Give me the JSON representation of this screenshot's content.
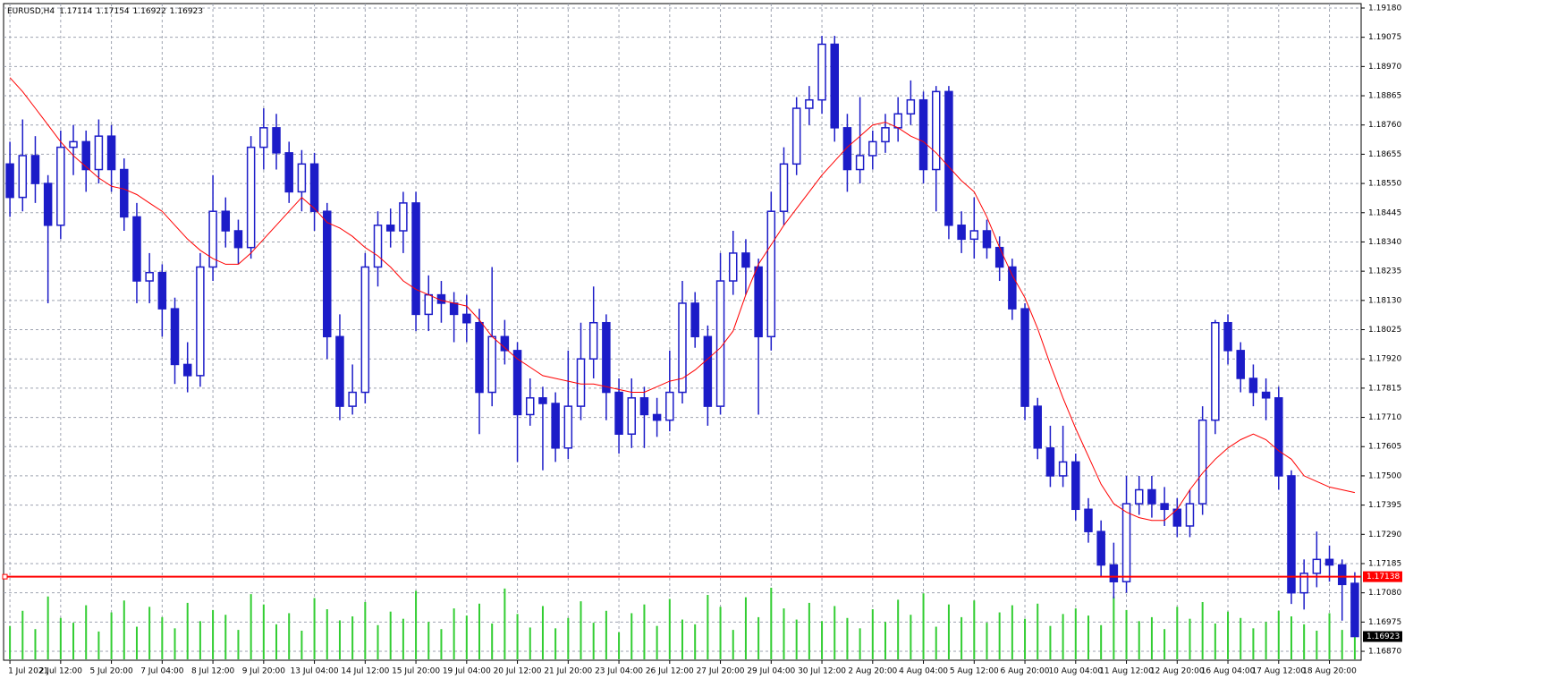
{
  "chart_data": {
    "type": "candlestick",
    "symbol": "EURUSD,H4",
    "header_values": [
      1.17114,
      1.17154,
      1.16922,
      1.16923
    ],
    "categories": [
      "1 Jul 2021",
      null,
      null,
      null,
      "2 Jul 12:00",
      null,
      null,
      null,
      "5 Jul 20:00",
      null,
      null,
      null,
      "7 Jul 04:00",
      null,
      null,
      null,
      "8 Jul 12:00",
      null,
      null,
      null,
      "9 Jul 20:00",
      null,
      null,
      null,
      "13 Jul 04:00",
      null,
      null,
      null,
      "14 Jul 12:00",
      null,
      null,
      null,
      "15 Jul 20:00",
      null,
      null,
      null,
      "19 Jul 04:00",
      null,
      null,
      null,
      "20 Jul 12:00",
      null,
      null,
      null,
      "21 Jul 20:00",
      null,
      null,
      null,
      "23 Jul 04:00",
      null,
      null,
      null,
      "26 Jul 12:00",
      null,
      null,
      null,
      "27 Jul 20:00",
      null,
      null,
      null,
      "29 Jul 04:00",
      null,
      null,
      null,
      "30 Jul 12:00",
      null,
      null,
      null,
      "2 Aug 20:00",
      null,
      null,
      null,
      "4 Aug 04:00",
      null,
      null,
      null,
      "5 Aug 12:00",
      null,
      null,
      null,
      "6 Aug 20:00",
      null,
      null,
      null,
      "10 Aug 04:00",
      null,
      null,
      null,
      "11 Aug 12:00",
      null,
      null,
      null,
      "12 Aug 20:00",
      null,
      null,
      null,
      "16 Aug 04:00",
      null,
      null,
      null,
      "17 Aug 12:00",
      null,
      null,
      null,
      "18 Aug 20:00",
      null,
      null
    ],
    "ohlc": [
      [
        1.1862,
        1.187,
        1.1843,
        1.185
      ],
      [
        1.185,
        1.1878,
        1.1845,
        1.1865
      ],
      [
        1.1865,
        1.1872,
        1.1848,
        1.1855
      ],
      [
        1.1855,
        1.1858,
        1.1812,
        1.184
      ],
      [
        1.184,
        1.1874,
        1.1835,
        1.1868
      ],
      [
        1.1868,
        1.1876,
        1.1858,
        1.187
      ],
      [
        1.187,
        1.1874,
        1.1852,
        1.186
      ],
      [
        1.186,
        1.1878,
        1.1855,
        1.1872
      ],
      [
        1.1872,
        1.1876,
        1.1852,
        1.186
      ],
      [
        1.186,
        1.1864,
        1.1838,
        1.1843
      ],
      [
        1.1843,
        1.1848,
        1.1812,
        1.182
      ],
      [
        1.182,
        1.183,
        1.1812,
        1.1823
      ],
      [
        1.1823,
        1.1826,
        1.18,
        1.181
      ],
      [
        1.181,
        1.1814,
        1.1783,
        1.179
      ],
      [
        1.179,
        1.1798,
        1.178,
        1.1786
      ],
      [
        1.1786,
        1.183,
        1.1782,
        1.1825
      ],
      [
        1.1825,
        1.1858,
        1.182,
        1.1845
      ],
      [
        1.1845,
        1.185,
        1.1832,
        1.1838
      ],
      [
        1.1838,
        1.1842,
        1.1826,
        1.1832
      ],
      [
        1.1832,
        1.1872,
        1.1828,
        1.1868
      ],
      [
        1.1868,
        1.1882,
        1.186,
        1.1875
      ],
      [
        1.1875,
        1.188,
        1.186,
        1.1866
      ],
      [
        1.1866,
        1.187,
        1.1848,
        1.1852
      ],
      [
        1.1852,
        1.1867,
        1.1845,
        1.1862
      ],
      [
        1.1862,
        1.1866,
        1.1838,
        1.1845
      ],
      [
        1.1845,
        1.1848,
        1.1792,
        1.18
      ],
      [
        1.18,
        1.1808,
        1.177,
        1.1775
      ],
      [
        1.1775,
        1.179,
        1.1772,
        1.178
      ],
      [
        1.178,
        1.183,
        1.1776,
        1.1825
      ],
      [
        1.1825,
        1.1845,
        1.1818,
        1.184
      ],
      [
        1.184,
        1.1846,
        1.1832,
        1.1838
      ],
      [
        1.1838,
        1.1852,
        1.183,
        1.1848
      ],
      [
        1.1848,
        1.1852,
        1.1802,
        1.1808
      ],
      [
        1.1808,
        1.1822,
        1.1802,
        1.1815
      ],
      [
        1.1815,
        1.182,
        1.1805,
        1.1812
      ],
      [
        1.1812,
        1.1816,
        1.1798,
        1.1808
      ],
      [
        1.1808,
        1.1815,
        1.1798,
        1.1805
      ],
      [
        1.1805,
        1.181,
        1.1765,
        1.178
      ],
      [
        1.178,
        1.1825,
        1.1775,
        1.18
      ],
      [
        1.18,
        1.1806,
        1.179,
        1.1795
      ],
      [
        1.1795,
        1.1798,
        1.1755,
        1.1772
      ],
      [
        1.1772,
        1.1785,
        1.1768,
        1.1778
      ],
      [
        1.1778,
        1.1782,
        1.1752,
        1.1776
      ],
      [
        1.1776,
        1.178,
        1.1755,
        1.176
      ],
      [
        1.176,
        1.1795,
        1.1756,
        1.1775
      ],
      [
        1.1775,
        1.1805,
        1.177,
        1.1792
      ],
      [
        1.1792,
        1.1818,
        1.1785,
        1.1805
      ],
      [
        1.1805,
        1.1808,
        1.177,
        1.178
      ],
      [
        1.178,
        1.1785,
        1.1758,
        1.1765
      ],
      [
        1.1765,
        1.1785,
        1.176,
        1.1778
      ],
      [
        1.1778,
        1.1782,
        1.176,
        1.1772
      ],
      [
        1.1772,
        1.1778,
        1.1764,
        1.177
      ],
      [
        1.177,
        1.1795,
        1.1766,
        1.178
      ],
      [
        1.178,
        1.182,
        1.1776,
        1.1812
      ],
      [
        1.1812,
        1.1816,
        1.1796,
        1.18
      ],
      [
        1.18,
        1.1804,
        1.1768,
        1.1775
      ],
      [
        1.1775,
        1.183,
        1.1772,
        1.182
      ],
      [
        1.182,
        1.1838,
        1.1815,
        1.183
      ],
      [
        1.183,
        1.1835,
        1.1815,
        1.1825
      ],
      [
        1.1825,
        1.1828,
        1.1772,
        1.18
      ],
      [
        1.18,
        1.1852,
        1.1795,
        1.1845
      ],
      [
        1.1845,
        1.1868,
        1.184,
        1.1862
      ],
      [
        1.1862,
        1.1886,
        1.1858,
        1.1882
      ],
      [
        1.1882,
        1.189,
        1.1876,
        1.1885
      ],
      [
        1.1885,
        1.1908,
        1.188,
        1.1905
      ],
      [
        1.1905,
        1.1908,
        1.187,
        1.1875
      ],
      [
        1.1875,
        1.188,
        1.1852,
        1.186
      ],
      [
        1.186,
        1.1886,
        1.1855,
        1.1865
      ],
      [
        1.1865,
        1.1874,
        1.186,
        1.187
      ],
      [
        1.187,
        1.188,
        1.1866,
        1.1875
      ],
      [
        1.1875,
        1.1886,
        1.187,
        1.188
      ],
      [
        1.188,
        1.1892,
        1.1876,
        1.1885
      ],
      [
        1.1885,
        1.1888,
        1.1855,
        1.186
      ],
      [
        1.186,
        1.189,
        1.1845,
        1.1888
      ],
      [
        1.1888,
        1.189,
        1.1835,
        1.184
      ],
      [
        1.184,
        1.1845,
        1.183,
        1.1835
      ],
      [
        1.1835,
        1.185,
        1.1828,
        1.1838
      ],
      [
        1.1838,
        1.1842,
        1.1828,
        1.1832
      ],
      [
        1.1832,
        1.1836,
        1.182,
        1.1825
      ],
      [
        1.1825,
        1.1828,
        1.1806,
        1.181
      ],
      [
        1.181,
        1.1812,
        1.177,
        1.1775
      ],
      [
        1.1775,
        1.1778,
        1.1756,
        1.176
      ],
      [
        1.176,
        1.1768,
        1.1746,
        1.175
      ],
      [
        1.175,
        1.1768,
        1.1746,
        1.1755
      ],
      [
        1.1755,
        1.1758,
        1.1734,
        1.1738
      ],
      [
        1.1738,
        1.1742,
        1.1726,
        1.173
      ],
      [
        1.173,
        1.1734,
        1.1714,
        1.1718
      ],
      [
        1.1718,
        1.1726,
        1.1706,
        1.1712
      ],
      [
        1.1712,
        1.175,
        1.1708,
        1.174
      ],
      [
        1.174,
        1.175,
        1.1736,
        1.1745
      ],
      [
        1.1745,
        1.175,
        1.1735,
        1.174
      ],
      [
        1.174,
        1.1746,
        1.1732,
        1.1738
      ],
      [
        1.1738,
        1.1742,
        1.1728,
        1.1732
      ],
      [
        1.1732,
        1.1745,
        1.1728,
        1.174
      ],
      [
        1.174,
        1.1775,
        1.1736,
        1.177
      ],
      [
        1.177,
        1.1806,
        1.1765,
        1.1805
      ],
      [
        1.1805,
        1.1808,
        1.179,
        1.1795
      ],
      [
        1.1795,
        1.1798,
        1.178,
        1.1785
      ],
      [
        1.1785,
        1.179,
        1.1775,
        1.178
      ],
      [
        1.178,
        1.1785,
        1.177,
        1.1778
      ],
      [
        1.1778,
        1.1782,
        1.1745,
        1.175
      ],
      [
        1.175,
        1.1752,
        1.1704,
        1.1708
      ],
      [
        1.1708,
        1.172,
        1.1702,
        1.1715
      ],
      [
        1.1715,
        1.173,
        1.171,
        1.172
      ],
      [
        1.172,
        1.1725,
        1.1712,
        1.1718
      ],
      [
        1.1718,
        1.172,
        1.1698,
        1.1711
      ],
      [
        1.17114,
        1.17154,
        1.16922,
        1.16923
      ]
    ],
    "ma": [
      1.1893,
      1.1888,
      1.1882,
      1.1876,
      1.187,
      1.1865,
      1.1861,
      1.1857,
      1.1854,
      1.1853,
      1.1851,
      1.1848,
      1.1845,
      1.184,
      1.1835,
      1.1831,
      1.1828,
      1.1826,
      1.1826,
      1.183,
      1.1835,
      1.184,
      1.1845,
      1.185,
      1.1846,
      1.1841,
      1.1839,
      1.1836,
      1.1832,
      1.1829,
      1.1825,
      1.182,
      1.1817,
      1.1815,
      1.1813,
      1.1812,
      1.1811,
      1.1806,
      1.18,
      1.1796,
      1.1792,
      1.1789,
      1.1786,
      1.1785,
      1.1784,
      1.1783,
      1.1783,
      1.1782,
      1.1781,
      1.178,
      1.178,
      1.1782,
      1.1784,
      1.1785,
      1.1788,
      1.1792,
      1.1796,
      1.1802,
      1.1815,
      1.1826,
      1.1833,
      1.184,
      1.1846,
      1.1852,
      1.1858,
      1.1863,
      1.1868,
      1.1872,
      1.1876,
      1.1877,
      1.1875,
      1.1872,
      1.187,
      1.1866,
      1.1861,
      1.1856,
      1.1852,
      1.1843,
      1.1832,
      1.1822,
      1.1814,
      1.1803,
      1.179,
      1.1778,
      1.1767,
      1.1757,
      1.1747,
      1.174,
      1.1737,
      1.1735,
      1.1734,
      1.1734,
      1.1738,
      1.1745,
      1.1751,
      1.1756,
      1.176,
      1.1763,
      1.1765,
      1.1763,
      1.1759,
      1.1756,
      1.175,
      1.1748,
      1.1746,
      1.1745,
      1.1744
    ],
    "volume": [
      4200,
      6100,
      3800,
      7900,
      5200,
      4600,
      6800,
      3500,
      5900,
      7400,
      4100,
      6600,
      5300,
      3900,
      7100,
      4800,
      6200,
      5600,
      3700,
      8200,
      6900,
      4400,
      5800,
      3600,
      7700,
      6300,
      4900,
      5400,
      7200,
      4300,
      6000,
      5100,
      8600,
      4700,
      3800,
      6400,
      5500,
      7000,
      4500,
      8900,
      5700,
      4000,
      6700,
      3900,
      5200,
      7300,
      4600,
      6100,
      3400,
      5800,
      6900,
      4200,
      7600,
      5000,
      4400,
      8100,
      6600,
      3700,
      7800,
      5300,
      9000,
      6400,
      5000,
      7100,
      4800,
      6700,
      5200,
      3900,
      6300,
      4700,
      7500,
      5600,
      8300,
      4100,
      6900,
      5300,
      7400,
      4600,
      5900,
      6800,
      5100,
      7000,
      4200,
      5700,
      6400,
      5500,
      4300,
      7900,
      6200,
      4800,
      5300,
      3800,
      6600,
      5100,
      7200,
      4500,
      6000,
      5200,
      3900,
      4700,
      6100,
      5400,
      4400,
      3600,
      5800,
      3700,
      6300
    ],
    "ylim": [
      1.16838,
      1.19196
    ],
    "yticks": [
      {
        "value": 1.1687,
        "label": "1.16870"
      },
      {
        "value": 1.16975,
        "label": "1.16975"
      },
      {
        "value": 1.1708,
        "label": "1.17080"
      },
      {
        "value": 1.17185,
        "label": "1.17185"
      },
      {
        "value": 1.1729,
        "label": "1.17290"
      },
      {
        "value": 1.17395,
        "label": "1.17395"
      },
      {
        "value": 1.175,
        "label": "1.17500"
      },
      {
        "value": 1.17605,
        "label": "1.17605"
      },
      {
        "value": 1.1771,
        "label": "1.17710"
      },
      {
        "value": 1.17815,
        "label": "1.17815"
      },
      {
        "value": 1.1792,
        "label": "1.17920"
      },
      {
        "value": 1.18025,
        "label": "1.18025"
      },
      {
        "value": 1.1813,
        "label": "1.18130"
      },
      {
        "value": 1.18235,
        "label": "1.18235"
      },
      {
        "value": 1.1834,
        "label": "1.18340"
      },
      {
        "value": 1.18445,
        "label": "1.18445"
      },
      {
        "value": 1.1855,
        "label": "1.18550"
      },
      {
        "value": 1.18655,
        "label": "1.18655"
      },
      {
        "value": 1.1876,
        "label": "1.18760"
      },
      {
        "value": 1.18865,
        "label": "1.18865"
      },
      {
        "value": 1.1897,
        "label": "1.18970"
      },
      {
        "value": 1.19075,
        "label": "1.19075"
      },
      {
        "value": 1.1918,
        "label": "1.19180"
      }
    ],
    "hline": 1.17138,
    "last_price": 1.16923,
    "grid": true,
    "colors": {
      "candle": "#1c1cc8",
      "volume": "#32cd32",
      "ma": "#ff0000",
      "hline": "#ff0000",
      "grid": "#9ea3b0"
    }
  }
}
